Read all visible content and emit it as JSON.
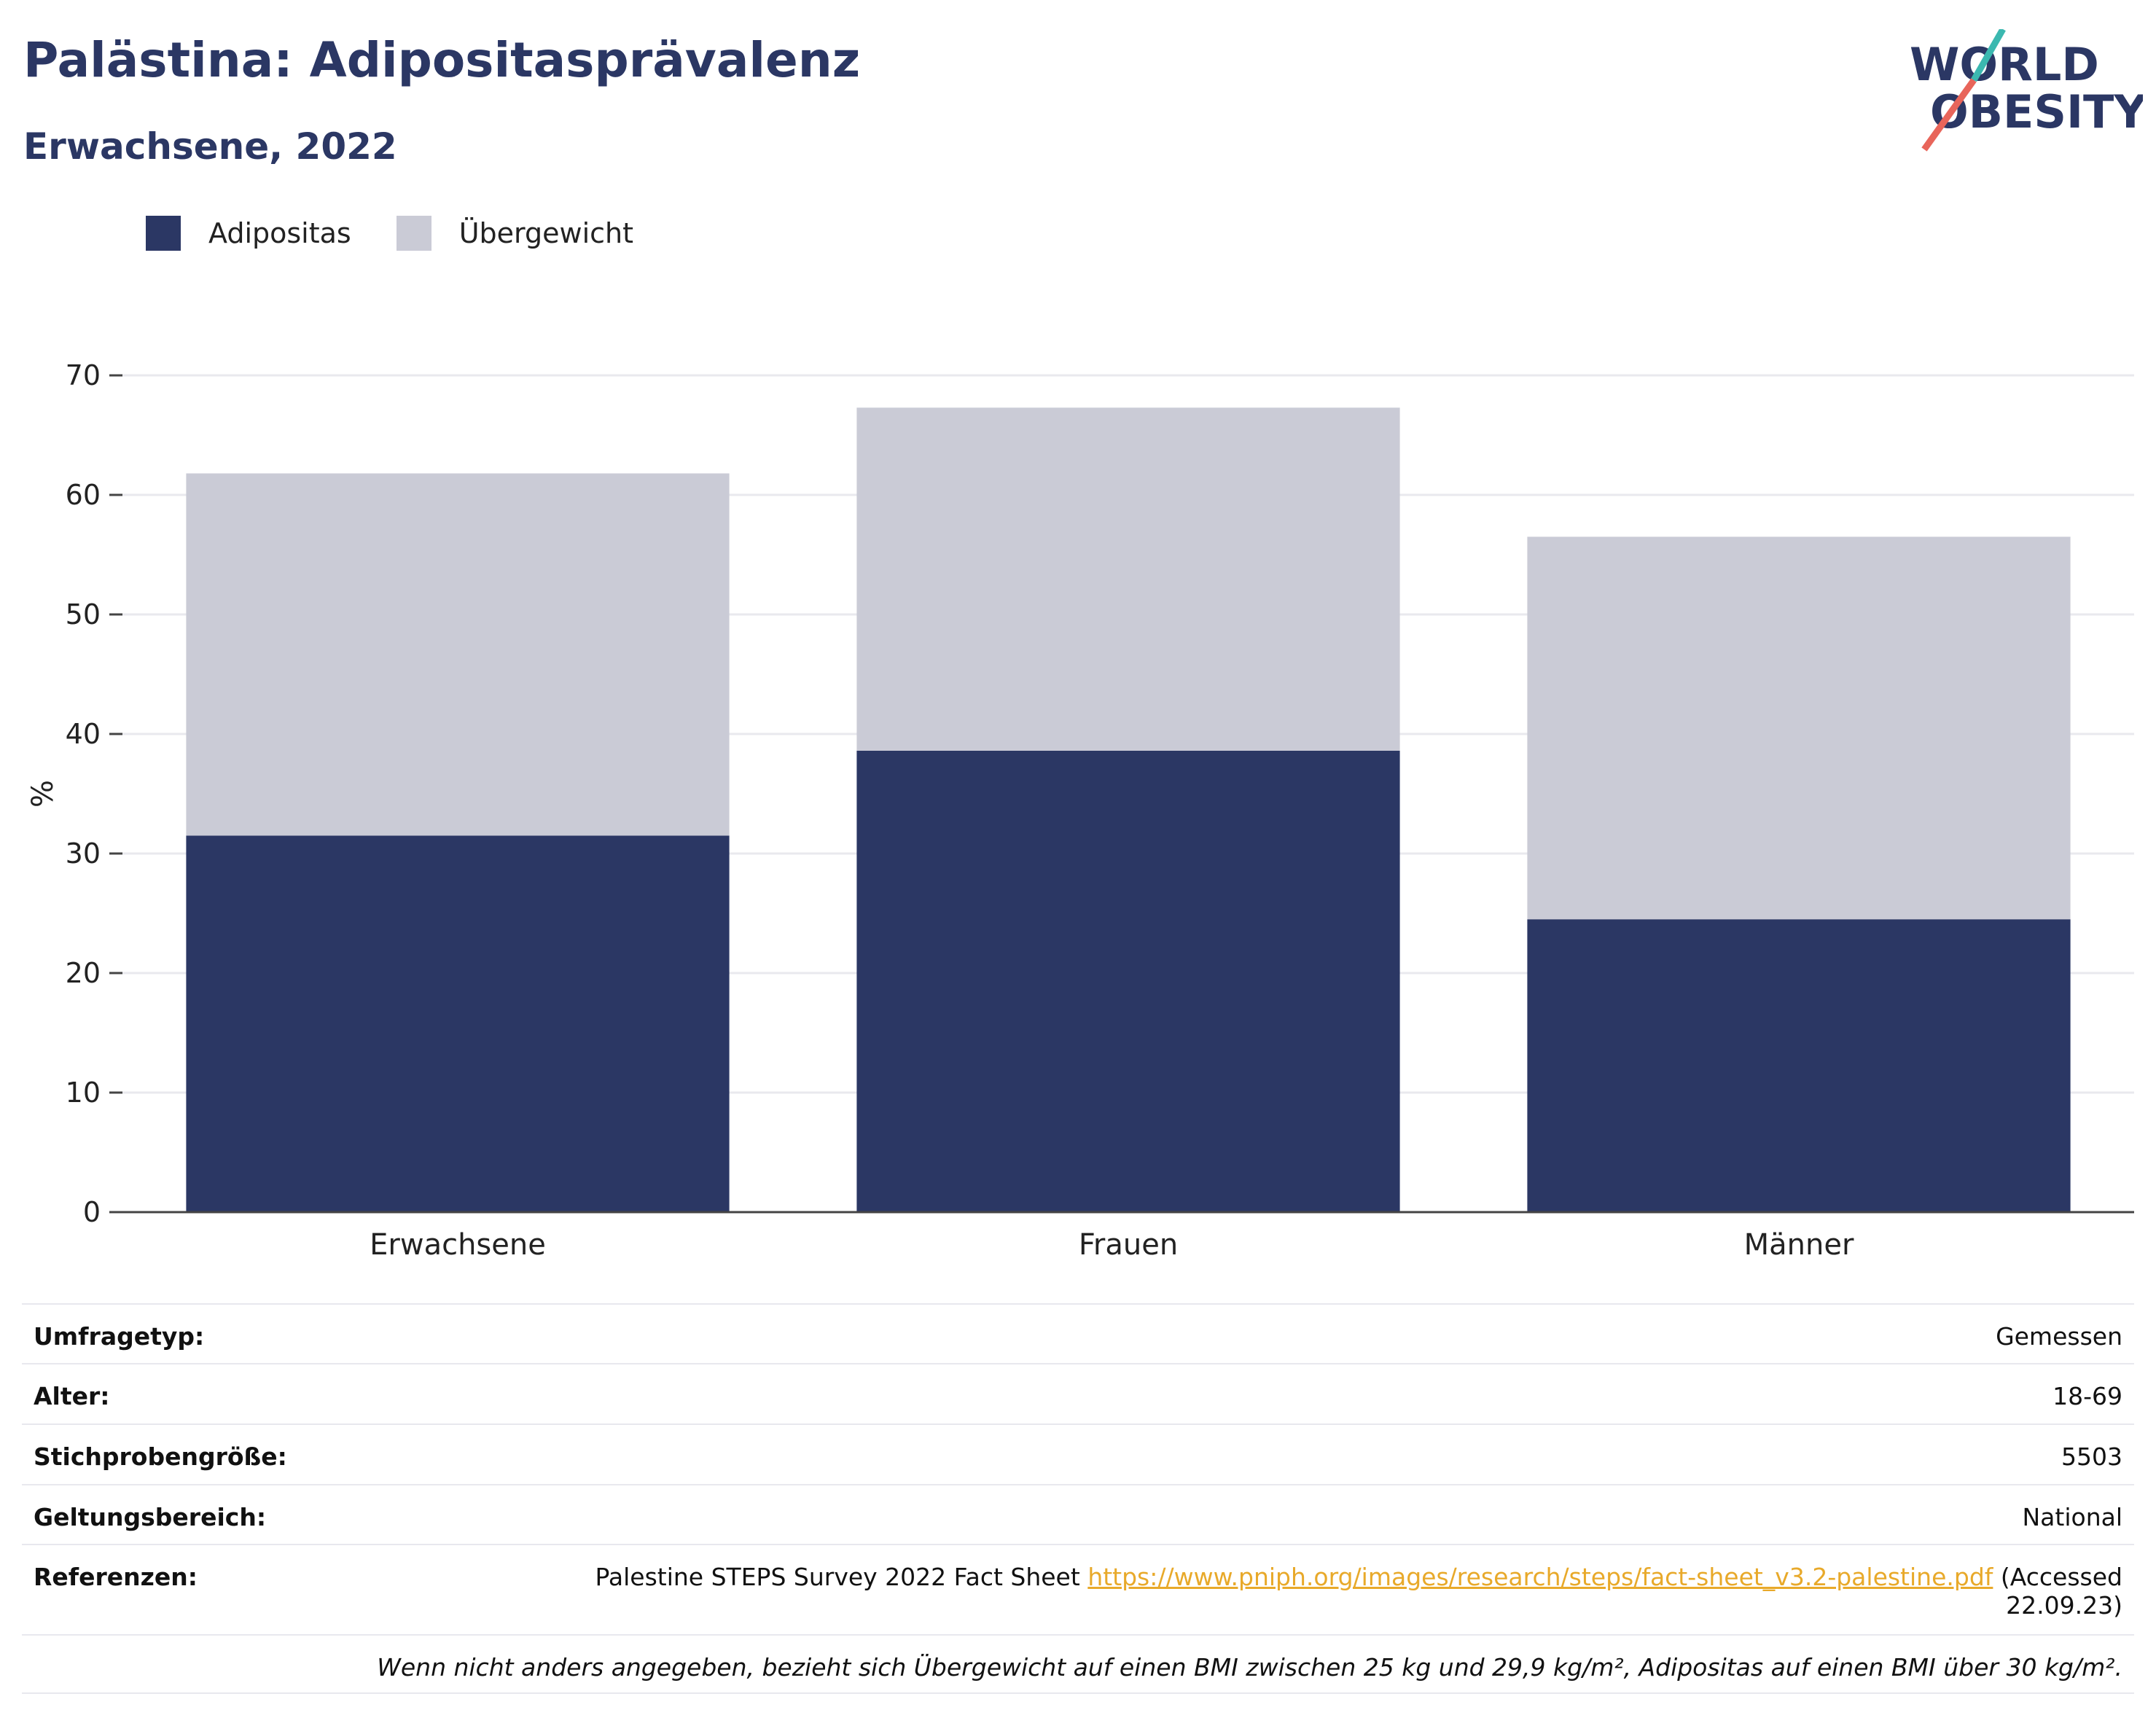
{
  "header": {
    "title": "Palästina: Adipositasprävalenz",
    "subtitle": "Erwachsene, 2022",
    "logo_line1": "WORLD",
    "logo_line2": "OBESITY"
  },
  "colors": {
    "obesity": "#2b3764",
    "overweight": "#cacbd6",
    "text": "#2b3764",
    "link": "#e8a92a"
  },
  "chart_data": {
    "type": "bar",
    "stacked": true,
    "categories": [
      "Erwachsene",
      "Frauen",
      "Männer"
    ],
    "series": [
      {
        "name": "Adipositas",
        "values": [
          31.5,
          38.6,
          24.5
        ]
      },
      {
        "name": "Übergewicht",
        "values": [
          30.3,
          28.7,
          32.0
        ]
      }
    ],
    "ylabel": "%",
    "ylim": [
      0,
      70
    ],
    "yticks": [
      0,
      10,
      20,
      30,
      40,
      50,
      60,
      70
    ],
    "grid": true,
    "legend_position": "top-left"
  },
  "info": {
    "survey_type_label": "Umfragetyp:",
    "survey_type_value": "Gemessen",
    "age_label": "Alter:",
    "age_value": "18-69",
    "sample_label": "Stichprobengröße:",
    "sample_value": "5503",
    "scope_label": "Geltungsbereich:",
    "scope_value": "National",
    "ref_label": "Referenzen:",
    "ref_text": "Palestine STEPS Survey 2022 Fact Sheet",
    "ref_link": "https://www.pniph.org/images/research/steps/fact-sheet_v3.2-palestine.pdf",
    "ref_accessed_1": "(Accessed",
    "ref_accessed_2": "22.09.23)",
    "note": "Wenn nicht anders angegeben, bezieht sich Übergewicht auf einen BMI zwischen 25 kg und 29,9 kg/m², Adipositas auf einen BMI über 30 kg/m²."
  }
}
